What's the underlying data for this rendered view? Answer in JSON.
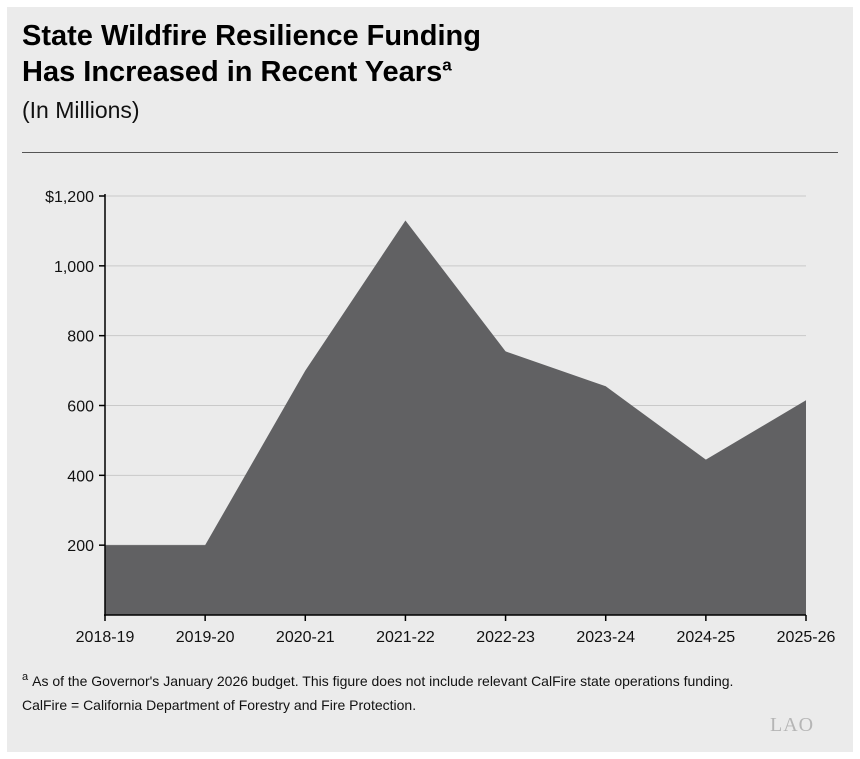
{
  "title": {
    "line1": "State Wildfire Resilience Funding",
    "line2": "Has Increased in Recent Years",
    "marker": "a"
  },
  "subtitle": "(In Millions)",
  "chart_data": {
    "type": "area",
    "categories": [
      "2018-19",
      "2019-20",
      "2020-21",
      "2021-22",
      "2022-23",
      "2023-24",
      "2024-25",
      "2025-26"
    ],
    "values": [
      200,
      200,
      700,
      1130,
      755,
      655,
      445,
      615
    ],
    "ylim": [
      0,
      1200
    ],
    "yticks": [
      200,
      400,
      600,
      800,
      1000,
      1200
    ],
    "ytick_labels": [
      "200",
      "400",
      "600",
      "800",
      "1,000",
      "$1,200"
    ],
    "grid": true,
    "colors": {
      "area": "#616163",
      "grid": "#c9c9c9",
      "axis": "#000000"
    }
  },
  "footnote": {
    "marker": "a",
    "line1": "As of the Governor's January 2026 budget. This figure does not include relevant CalFire state operations funding.",
    "line2": "CalFire = California Department of Forestry and Fire Protection."
  },
  "logo": "LAO"
}
